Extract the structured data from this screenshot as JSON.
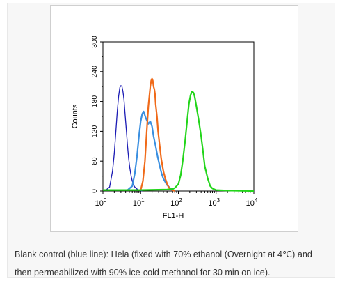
{
  "caption": "Blank control (blue line): Hela (fixed with 70% ethanol (Overnight at 4℃) and then permeabilized with 90% ice-cold methanol for 30 min on ice).",
  "chart_data": {
    "type": "line",
    "xlabel": "FL1-H",
    "ylabel": "Counts",
    "xscale": "log",
    "xlim": [
      1,
      10000
    ],
    "ylim": [
      0,
      300
    ],
    "x_ticks": [
      {
        "base": "10",
        "exp": "0",
        "value": 1
      },
      {
        "base": "10",
        "exp": "1",
        "value": 10
      },
      {
        "base": "10",
        "exp": "2",
        "value": 100
      },
      {
        "base": "10",
        "exp": "3",
        "value": 1000
      },
      {
        "base": "10",
        "exp": "4",
        "value": 10000
      }
    ],
    "y_ticks": [
      {
        "label": "0",
        "value": 0
      },
      {
        "label": "60",
        "value": 60
      },
      {
        "label": "120",
        "value": 120
      },
      {
        "label": "180",
        "value": 180
      },
      {
        "label": "240",
        "value": 240
      },
      {
        "label": "300",
        "value": 300
      }
    ],
    "grid": false,
    "series": [
      {
        "color": "#1b1bb4",
        "x": [
          1.2,
          1.5,
          1.8,
          2.0,
          2.2,
          2.4,
          2.6,
          2.8,
          3.0,
          3.2,
          3.4,
          3.6,
          3.9,
          4.2,
          4.5,
          4.8,
          5.2,
          5.6,
          6.0,
          6.5,
          7.0,
          8.0,
          9.0,
          11.0
        ],
        "y": [
          2,
          8,
          40,
          75,
          120,
          160,
          190,
          208,
          212,
          210,
          200,
          185,
          150,
          120,
          90,
          65,
          45,
          30,
          20,
          12,
          8,
          4,
          2,
          0
        ]
      },
      {
        "color": "#3a8fe0",
        "x": [
          4.5,
          6.0,
          7.0,
          8.0,
          9.0,
          10.0,
          11.0,
          12.0,
          13.0,
          14.0,
          15.0,
          16.0,
          18.0,
          20.0,
          22.0,
          25.0,
          28.0,
          32.0,
          36.0,
          40.0,
          50.0,
          60.0,
          70.0,
          80.0
        ],
        "y": [
          2,
          10,
          35,
          70,
          110,
          140,
          155,
          160,
          152,
          145,
          140,
          135,
          140,
          130,
          110,
          90,
          70,
          50,
          35,
          25,
          12,
          6,
          3,
          0
        ]
      },
      {
        "color": "#f06a19",
        "x": [
          10.0,
          11.5,
          13.0,
          14.5,
          16.0,
          18.0,
          19.0,
          20.0,
          21.0,
          22.0,
          23.0,
          24.0,
          25.0,
          27.0,
          29.0,
          32.0,
          35.0,
          40.0,
          45.0,
          50.0,
          55.0,
          60.0,
          70.0,
          80.0
        ],
        "y": [
          2,
          20,
          60,
          120,
          170,
          210,
          222,
          226,
          222,
          210,
          205,
          195,
          175,
          150,
          120,
          90,
          65,
          40,
          25,
          15,
          8,
          4,
          2,
          0
        ]
      },
      {
        "color": "#22d51a",
        "x": [
          1.0,
          10.0,
          50.0,
          70.0,
          80.0,
          100.0,
          115.0,
          130.0,
          150.0,
          170.0,
          190.0,
          210.0,
          230.0,
          250.0,
          270.0,
          300.0,
          350.0,
          400.0,
          450.0,
          500.0,
          600.0,
          700.0,
          800.0,
          1000.0,
          2000.0,
          10000.0
        ],
        "y": [
          2,
          2,
          3,
          4,
          6,
          14,
          32,
          60,
          100,
          140,
          175,
          193,
          200,
          198,
          190,
          170,
          140,
          110,
          80,
          50,
          25,
          10,
          5,
          2,
          1,
          0
        ]
      }
    ]
  }
}
